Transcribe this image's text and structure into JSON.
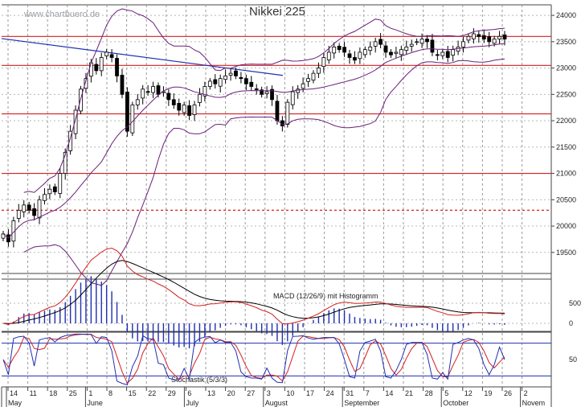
{
  "watermark": "www.chartbuero.de",
  "chart_data": {
    "type": "candlestick",
    "title": "Nikkei 225",
    "price_axis": {
      "ticks": [
        24000,
        23500,
        23000,
        22500,
        22000,
        21500,
        21000,
        20500,
        20000,
        19500
      ],
      "ylim": [
        19100,
        24200
      ]
    },
    "x_axis": {
      "day_ticks": [
        "14",
        "11",
        "18",
        "25",
        "1",
        "8",
        "15",
        "22",
        "29",
        "6",
        "13",
        "20",
        "27",
        "3",
        "10",
        "17",
        "24",
        "31",
        "7",
        "14",
        "21",
        "28",
        "5",
        "12",
        "19",
        "26",
        "2"
      ],
      "months": [
        "May",
        "June",
        "July",
        "August",
        "September",
        "October",
        "Novem"
      ]
    },
    "horizontal_lines": [
      {
        "value": 23600,
        "color": "#d42020",
        "style": "solid"
      },
      {
        "value": 23050,
        "color": "#d42020",
        "style": "solid"
      },
      {
        "value": 22130,
        "color": "#d42020",
        "style": "solid"
      },
      {
        "value": 21000,
        "color": "#d42020",
        "style": "solid"
      },
      {
        "value": 20300,
        "color": "#d42020",
        "style": "dashed"
      }
    ],
    "trendline": {
      "from": {
        "x": 0,
        "y": 23560
      },
      "to": {
        "x": 350,
        "y": 22860
      },
      "color": "#1f2fb0"
    },
    "close_series": [
      19850,
      19700,
      20100,
      20300,
      20400,
      20300,
      20200,
      20500,
      20600,
      20700,
      20650,
      21000,
      21400,
      21800,
      22200,
      22600,
      22800,
      23100,
      22950,
      23200,
      23300,
      23200,
      22850,
      22500,
      21800,
      22300,
      22400,
      22600,
      22550,
      22650,
      22500,
      22550,
      22400,
      22300,
      22200,
      22300,
      22100,
      22300,
      22500,
      22650,
      22750,
      22700,
      22800,
      22850,
      22900,
      22850,
      22800,
      22700,
      22650,
      22600,
      22500,
      22550,
      22400,
      22000,
      21900,
      22350,
      22550,
      22600,
      22700,
      22800,
      22900,
      23000,
      23200,
      23300,
      23400,
      23350,
      23300,
      23200,
      23150,
      23300,
      23350,
      23400,
      23500,
      23450,
      23300,
      23250,
      23300,
      23350,
      23400,
      23450,
      23500,
      23550,
      23500,
      23300,
      23250,
      23300,
      23200,
      23350,
      23400,
      23500,
      23600,
      23650,
      23600,
      23550,
      23500,
      23550,
      23600,
      23550
    ],
    "bollinger": {
      "color": "#6b1e7a"
    },
    "macd": {
      "label": "MACD (12/26/9) mit Histogramm",
      "tick_values": [
        500,
        0
      ],
      "ylim": [
        -200,
        1100
      ]
    },
    "stochastic": {
      "label": "Stochastik (5/3/3)",
      "tick_values": [
        50
      ],
      "ylim": [
        0,
        100
      ],
      "levels": [
        80,
        20
      ]
    }
  }
}
